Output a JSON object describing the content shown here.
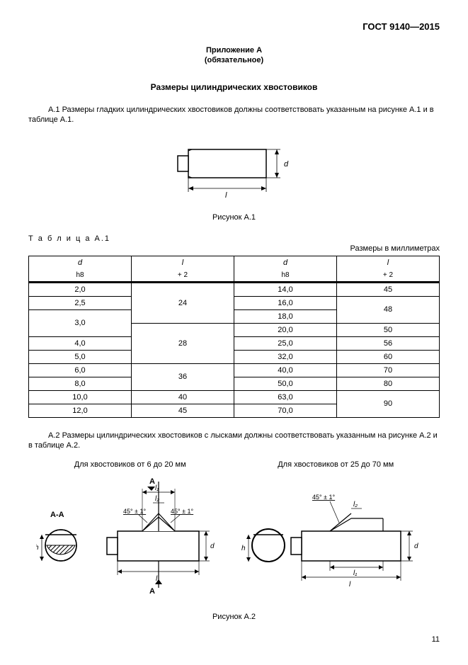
{
  "header": {
    "standard": "ГОСТ 9140—2015"
  },
  "annex": {
    "title": "Приложение А",
    "sub": "(обязательное)"
  },
  "section_title": "Размеры цилиндрических хвостовиков",
  "para_a1": "А.1 Размеры гладких цилиндрических хвостовиков должны соответствовать указанным на рисунке А.1 и в таблице А.1.",
  "fig1": {
    "caption": "Рисунок А.1",
    "dim_l": "l",
    "dim_d": "d"
  },
  "table_a1": {
    "label": "Т а б л и ц а  А.1",
    "units": "Размеры в миллиметрах",
    "headers": {
      "d": "d",
      "d_sub": "h8",
      "l": "l",
      "l_sub": "+ 2"
    },
    "columns_layout": [
      "d",
      "l",
      "d",
      "l"
    ]
  },
  "table_a1_data": {
    "left": [
      {
        "d": "2,0",
        "l": "24",
        "l_span": 3
      },
      {
        "d": "2,5"
      },
      {
        "d": "3,0",
        "d_span": 2
      },
      {
        "l": "28",
        "l_span": 3
      },
      {
        "d": "4,0"
      },
      {
        "d": "5,0"
      },
      {
        "d": "6,0",
        "l": "36",
        "l_span": 2
      },
      {
        "d": "8,0"
      },
      {
        "d": "10,0",
        "l": "40"
      },
      {
        "d": "12,0",
        "l": "45"
      }
    ],
    "right": [
      {
        "d": "14,0",
        "l": "45"
      },
      {
        "d": "16,0",
        "l": "48",
        "l_span": 2
      },
      {
        "d": "18,0"
      },
      {
        "d": "20,0",
        "l": "50"
      },
      {
        "d": "25,0",
        "l": "56"
      },
      {
        "d": "32,0",
        "l": "60"
      },
      {
        "d": "40,0",
        "l": "70"
      },
      {
        "d": "50,0",
        "l": "80"
      },
      {
        "d": "63,0",
        "l": "90",
        "l_span": 2
      },
      {
        "d": "70,0"
      }
    ]
  },
  "para_a2": "А.2 Размеры цилиндрических хвостовиков с лысками должны соответствовать указанным на рисунке А.2 и в таблице А.2.",
  "fig2": {
    "label_left": "Для хвостовиков от 6 до 20 мм",
    "label_right": "Для хвостовиков от 25 до 70 мм",
    "caption": "Рисунок А.2",
    "angle": "45° ± 1°",
    "section": "А-А",
    "section_mark": "А",
    "dim_l": "l",
    "dim_l1": "l₁",
    "dim_l2": "l₂",
    "dim_d": "d",
    "dim_h": "h"
  },
  "page_number": "11",
  "colors": {
    "stroke": "#000000",
    "fill_hatch": "#000000",
    "fill_body": "#ffffff",
    "background": "#ffffff"
  },
  "fonts": {
    "body_pt": 11,
    "header_pt": 13
  }
}
